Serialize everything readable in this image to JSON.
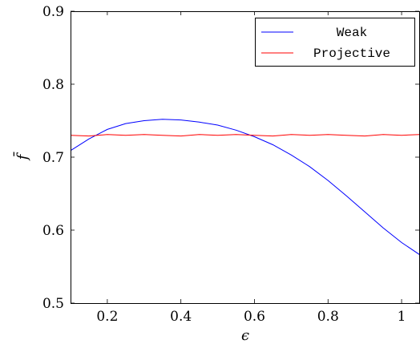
{
  "chart_data": {
    "type": "line",
    "xlabel": "ϵ",
    "ylabel": "f̄",
    "xlim": [
      0.1,
      1.05
    ],
    "ylim": [
      0.5,
      0.9
    ],
    "xticks": [
      0.2,
      0.4,
      0.6,
      0.8,
      1.0
    ],
    "xtick_labels": [
      "0.2",
      "0.4",
      "0.6",
      "0.8",
      "1"
    ],
    "yticks": [
      0.5,
      0.6,
      0.7,
      0.8,
      0.9
    ],
    "ytick_labels": [
      "0.5",
      "0.6",
      "0.7",
      "0.8",
      "0.9"
    ],
    "grid": false,
    "legend_position": "top-right",
    "series": [
      {
        "name": "Weak",
        "color": "#0000ff",
        "x": [
          0.1,
          0.15,
          0.2,
          0.25,
          0.3,
          0.35,
          0.4,
          0.45,
          0.5,
          0.55,
          0.6,
          0.65,
          0.7,
          0.75,
          0.8,
          0.85,
          0.9,
          0.95,
          1.0,
          1.05
        ],
        "y": [
          0.709,
          0.725,
          0.738,
          0.746,
          0.75,
          0.752,
          0.751,
          0.748,
          0.744,
          0.737,
          0.728,
          0.717,
          0.703,
          0.687,
          0.668,
          0.647,
          0.625,
          0.603,
          0.583,
          0.566
        ]
      },
      {
        "name": "Projective",
        "color": "#ff0000",
        "x": [
          0.1,
          0.15,
          0.2,
          0.25,
          0.3,
          0.35,
          0.4,
          0.45,
          0.5,
          0.55,
          0.6,
          0.65,
          0.7,
          0.75,
          0.8,
          0.85,
          0.9,
          0.95,
          1.0,
          1.05
        ],
        "y": [
          0.73,
          0.729,
          0.731,
          0.73,
          0.731,
          0.73,
          0.729,
          0.731,
          0.73,
          0.731,
          0.73,
          0.729,
          0.731,
          0.73,
          0.731,
          0.73,
          0.729,
          0.731,
          0.73,
          0.731
        ]
      }
    ]
  }
}
